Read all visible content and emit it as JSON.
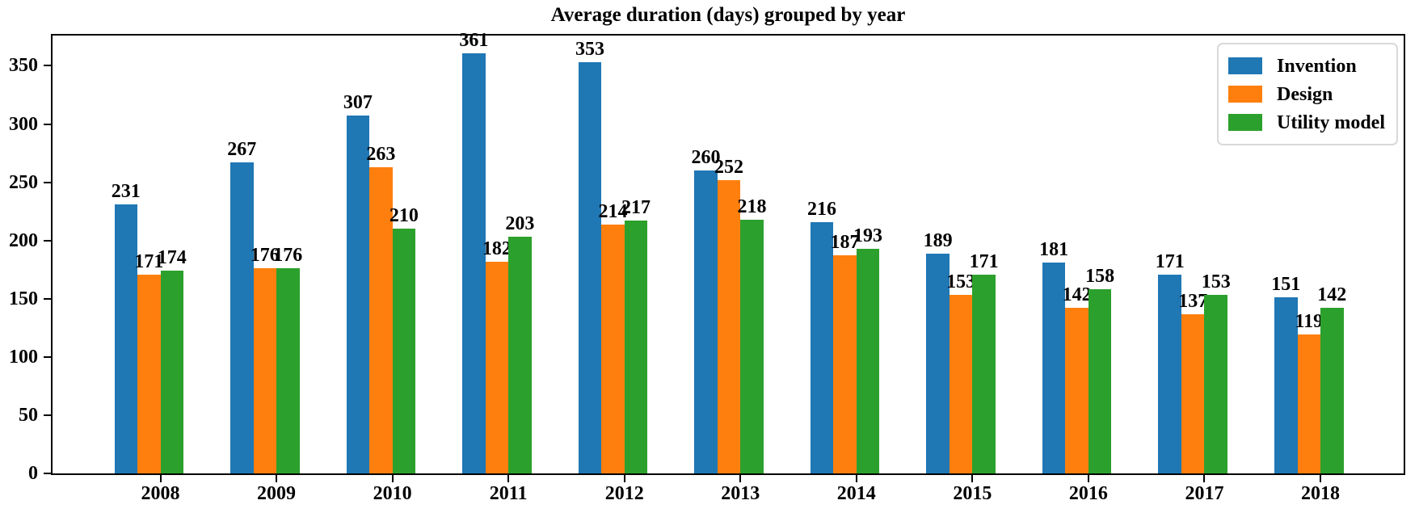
{
  "title": "Average duration (days) grouped by year",
  "colors": {
    "invention": "#1f77b4",
    "design": "#ff7f0e",
    "utility_model": "#2ca02c",
    "axis": "#000000",
    "background": "#ffffff",
    "legend_border": "#d9d9d9"
  },
  "legend": {
    "position": "upper right",
    "items": [
      {
        "label": "Invention",
        "color": "#1f77b4"
      },
      {
        "label": "Design",
        "color": "#ff7f0e"
      },
      {
        "label": "Utility model",
        "color": "#2ca02c"
      }
    ]
  },
  "chart_data": {
    "type": "bar",
    "title": "Average duration (days) grouped by year",
    "categories": [
      "2008",
      "2009",
      "2010",
      "2011",
      "2012",
      "2013",
      "2014",
      "2015",
      "2016",
      "2017",
      "2018"
    ],
    "series": [
      {
        "name": "Invention",
        "color": "#1f77b4",
        "values": [
          231,
          267,
          307,
          361,
          353,
          260,
          216,
          189,
          181,
          171,
          151
        ]
      },
      {
        "name": "Design",
        "color": "#ff7f0e",
        "values": [
          171,
          176,
          263,
          182,
          214,
          252,
          187,
          153,
          142,
          137,
          119
        ]
      },
      {
        "name": "Utility model",
        "color": "#2ca02c",
        "values": [
          174,
          176,
          210,
          203,
          217,
          218,
          193,
          171,
          158,
          153,
          142
        ]
      }
    ],
    "xlabel": "",
    "ylabel": "",
    "ylim": [
      0,
      376
    ],
    "yticks": [
      0,
      50,
      100,
      150,
      200,
      250,
      300,
      350
    ],
    "bar_value_labels": true,
    "legend_position": "upper right",
    "grid": false
  }
}
